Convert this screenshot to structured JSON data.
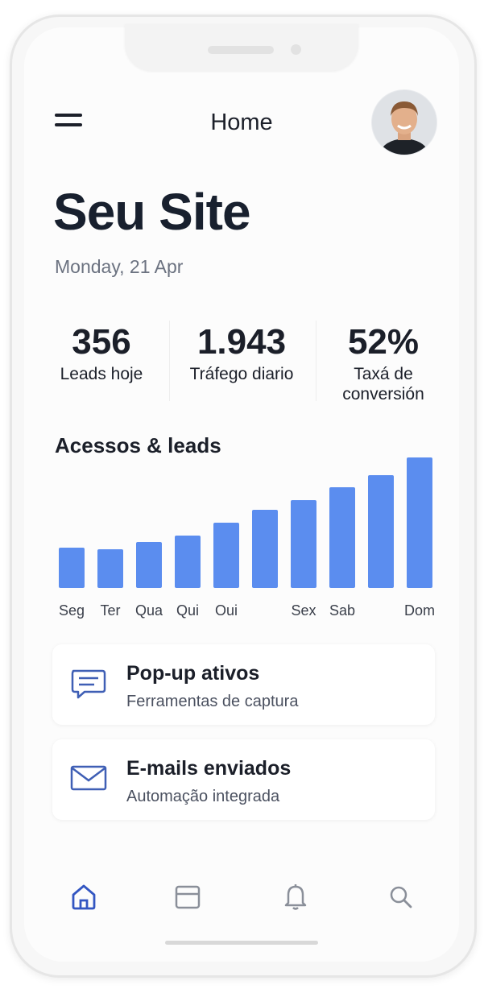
{
  "header": {
    "title": "Home"
  },
  "site": {
    "title": "Seu Site",
    "date": "Monday, 21 Apr"
  },
  "stats": [
    {
      "value": "356",
      "label": "Leads hoje"
    },
    {
      "value": "1.943",
      "label": "Tráfego diario"
    },
    {
      "value": "52%",
      "label": "Taxá de conversión"
    }
  ],
  "chart_data": {
    "type": "bar",
    "title": "Acessos & leads",
    "categories": [
      "Seg",
      "Ter",
      "Qua",
      "Qui",
      "Oui",
      null,
      "Sex",
      "Sab",
      null,
      "Dom"
    ],
    "values": [
      50,
      48,
      57,
      65,
      81,
      97,
      109,
      125,
      140,
      162
    ],
    "color": "#5b8def",
    "ylim": [
      0,
      170
    ]
  },
  "cards": [
    {
      "title": "Pop-up ativos",
      "subtitle": "Ferramentas de captura"
    },
    {
      "title": "E-mails enviados",
      "subtitle": "Automação integrada"
    }
  ]
}
